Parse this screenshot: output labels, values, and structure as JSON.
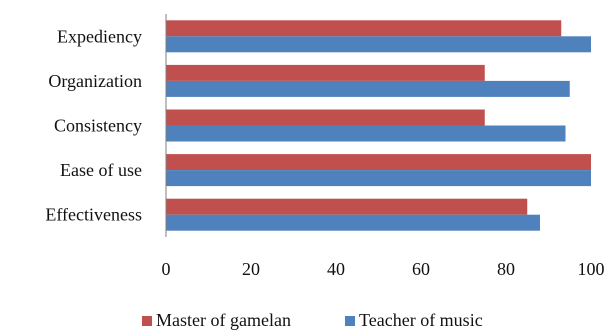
{
  "chart_data": {
    "type": "bar",
    "orientation": "horizontal",
    "categories": [
      "Expediency",
      "Organization",
      "Consistency",
      "Ease of use",
      "Effectiveness"
    ],
    "series": [
      {
        "name": "Master of gamelan",
        "color": "#c0504d",
        "values": [
          93,
          75,
          75,
          100,
          85
        ]
      },
      {
        "name": "Teacher of music",
        "color": "#4f81bd",
        "values": [
          100,
          95,
          94,
          100,
          88
        ]
      }
    ],
    "x_ticks": [
      "0",
      "20",
      "40",
      "60",
      "80",
      "100"
    ],
    "xlim": [
      0,
      100
    ],
    "legend_position": "bottom",
    "grid": false
  }
}
